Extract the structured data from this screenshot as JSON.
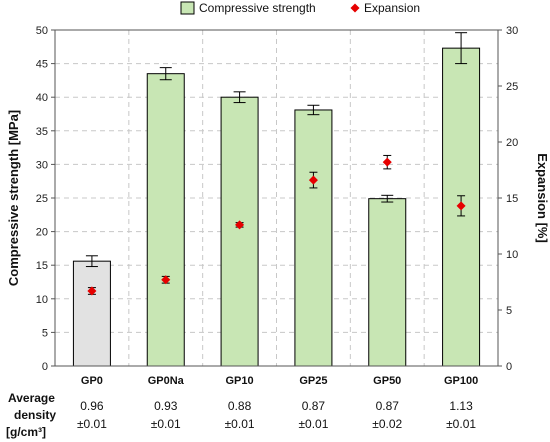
{
  "chart_data": {
    "type": "bar",
    "categories": [
      "GP0",
      "GP0Na",
      "GP10",
      "GP25",
      "GP50",
      "GP100"
    ],
    "series": [
      {
        "name": "Compressive strength",
        "axis": "left",
        "values": [
          15.6,
          43.5,
          40.0,
          38.1,
          24.9,
          47.3
        ],
        "errors": [
          0.8,
          0.9,
          0.8,
          0.7,
          0.5,
          2.3
        ],
        "colors": [
          "#e2e2e2",
          "#c8e6b4",
          "#c8e6b4",
          "#c8e6b4",
          "#c8e6b4",
          "#c8e6b4"
        ]
      },
      {
        "name": "Expansion",
        "axis": "right",
        "type": "scatter",
        "values": [
          6.7,
          7.7,
          12.6,
          16.6,
          18.2,
          14.3
        ],
        "errors": [
          0.3,
          0.3,
          0.2,
          0.7,
          0.6,
          0.9
        ],
        "color": "#e60000"
      }
    ],
    "ylabel": "Compressive strength [MPa]",
    "y2label": "Expansion [%]",
    "ylim": [
      0,
      50
    ],
    "y2lim": [
      0,
      30
    ],
    "yticks": [
      "0",
      "5",
      "10",
      "15",
      "20",
      "25",
      "30",
      "35",
      "40",
      "45",
      "50"
    ],
    "y2ticks": [
      "0",
      "5",
      "10",
      "15",
      "20",
      "25",
      "30"
    ],
    "grid": true,
    "legend": "top",
    "table": {
      "header": [
        "Average",
        "density",
        "[g/cm³]"
      ],
      "values": [
        "0.96",
        "0.93",
        "0.88",
        "0.87",
        "0.87",
        "1.13"
      ],
      "errors": [
        "±0.01",
        "±0.01",
        "±0.01",
        "±0.01",
        "±0.02",
        "±0.01"
      ]
    }
  }
}
